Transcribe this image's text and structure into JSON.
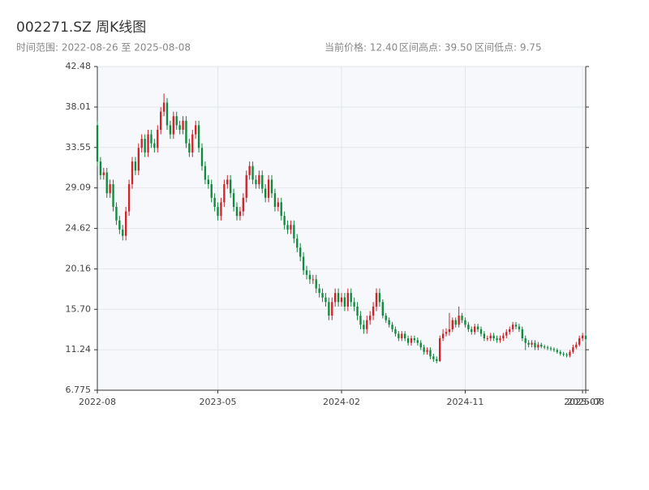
{
  "chart_data": {
    "type": "candlestick",
    "title": "002271.SZ 周K线图",
    "subtitle": "时间范围: 2022-08-26 至 2025-08-08",
    "stats": [
      "当前价格: 12.40",
      "区间高点: 39.50",
      "区间低点: 9.75"
    ],
    "up_color": "#d0232a",
    "down_color": "#108a3c",
    "grid": true,
    "xlim": [
      0,
      154
    ],
    "xticks": [
      {
        "value": 0,
        "label": "2022-08"
      },
      {
        "value": 38,
        "label": "2023-05"
      },
      {
        "value": 77,
        "label": "2024-02"
      },
      {
        "value": 116,
        "label": "2024-11"
      },
      {
        "value": 153,
        "label": "2025-07"
      },
      {
        "value": 154,
        "label": "2025-08"
      }
    ],
    "ylim": [
      6.775,
      42.48
    ],
    "yticks": [
      6.775,
      11.24,
      {
        "value": 15.7,
        "label": "15.70"
      },
      20.16,
      24.62,
      29.09,
      33.55,
      38.01,
      42.48
    ],
    "ohlc": [
      [
        36.0,
        36.5,
        31.5,
        32.0
      ],
      [
        32.0,
        32.5,
        30.0,
        30.5
      ],
      [
        30.5,
        31.3,
        30.0,
        30.8
      ],
      [
        30.8,
        31.3,
        28.0,
        28.5
      ],
      [
        28.5,
        30.0,
        28.0,
        29.5
      ],
      [
        29.5,
        30.0,
        26.5,
        27.0
      ],
      [
        27.0,
        27.5,
        25.0,
        25.5
      ],
      [
        25.5,
        26.0,
        24.0,
        24.5
      ],
      [
        24.5,
        25.0,
        23.3,
        23.8
      ],
      [
        23.8,
        27.0,
        23.3,
        26.5
      ],
      [
        26.5,
        30.0,
        26.0,
        29.5
      ],
      [
        29.5,
        32.5,
        29.0,
        32.0
      ],
      [
        32.0,
        32.5,
        30.5,
        31.0
      ],
      [
        31.0,
        34.0,
        30.5,
        33.5
      ],
      [
        33.5,
        35.0,
        33.0,
        34.5
      ],
      [
        34.5,
        35.0,
        32.5,
        33.0
      ],
      [
        33.0,
        35.5,
        32.5,
        35.0
      ],
      [
        35.0,
        35.5,
        33.5,
        34.0
      ],
      [
        34.0,
        34.5,
        33.0,
        33.5
      ],
      [
        33.5,
        36.0,
        33.0,
        35.5
      ],
      [
        35.5,
        38.0,
        35.0,
        37.5
      ],
      [
        37.5,
        39.5,
        37.0,
        38.5
      ],
      [
        38.5,
        39.0,
        35.5,
        36.0
      ],
      [
        36.0,
        36.5,
        34.5,
        35.0
      ],
      [
        35.0,
        37.5,
        34.5,
        37.0
      ],
      [
        37.0,
        37.5,
        35.5,
        36.0
      ],
      [
        36.0,
        36.5,
        35.0,
        35.5
      ],
      [
        35.5,
        37.0,
        35.0,
        36.5
      ],
      [
        36.5,
        37.0,
        33.5,
        34.0
      ],
      [
        34.0,
        34.5,
        32.5,
        33.0
      ],
      [
        33.0,
        35.5,
        32.5,
        35.0
      ],
      [
        35.0,
        36.5,
        34.5,
        36.0
      ],
      [
        36.0,
        36.5,
        33.0,
        33.5
      ],
      [
        33.5,
        34.0,
        31.0,
        31.5
      ],
      [
        31.5,
        32.0,
        29.5,
        30.0
      ],
      [
        30.0,
        30.5,
        29.0,
        29.5
      ],
      [
        29.5,
        30.0,
        27.5,
        28.0
      ],
      [
        28.0,
        28.5,
        26.5,
        27.0
      ],
      [
        27.0,
        27.5,
        25.5,
        26.0
      ],
      [
        26.0,
        28.0,
        25.5,
        27.5
      ],
      [
        27.5,
        30.0,
        27.0,
        29.5
      ],
      [
        29.5,
        30.5,
        29.0,
        30.0
      ],
      [
        30.0,
        30.5,
        28.0,
        28.5
      ],
      [
        28.5,
        29.0,
        26.5,
        27.0
      ],
      [
        27.0,
        27.5,
        25.5,
        26.0
      ],
      [
        26.0,
        27.0,
        25.5,
        26.5
      ],
      [
        26.5,
        28.5,
        26.0,
        28.0
      ],
      [
        28.0,
        31.0,
        27.5,
        30.5
      ],
      [
        30.5,
        32.0,
        30.0,
        31.5
      ],
      [
        31.5,
        32.0,
        29.5,
        30.0
      ],
      [
        30.0,
        30.5,
        29.0,
        29.5
      ],
      [
        29.5,
        31.0,
        29.0,
        30.5
      ],
      [
        30.5,
        31.0,
        28.5,
        29.0
      ],
      [
        29.0,
        29.5,
        27.5,
        28.0
      ],
      [
        28.0,
        30.5,
        27.5,
        30.0
      ],
      [
        30.0,
        30.5,
        28.0,
        28.5
      ],
      [
        28.5,
        29.0,
        26.5,
        27.0
      ],
      [
        27.0,
        28.0,
        26.5,
        27.5
      ],
      [
        27.5,
        28.0,
        25.5,
        26.0
      ],
      [
        26.0,
        26.5,
        24.5,
        25.0
      ],
      [
        25.0,
        25.5,
        24.0,
        24.5
      ],
      [
        24.5,
        25.5,
        24.0,
        25.0
      ],
      [
        25.0,
        25.5,
        23.0,
        23.5
      ],
      [
        23.5,
        24.0,
        22.0,
        22.5
      ],
      [
        22.5,
        23.0,
        21.0,
        21.5
      ],
      [
        21.5,
        22.0,
        19.5,
        20.0
      ],
      [
        20.0,
        20.5,
        19.0,
        19.5
      ],
      [
        19.5,
        20.0,
        18.5,
        19.0
      ],
      [
        19.0,
        19.5,
        18.5,
        19.0
      ],
      [
        19.0,
        19.5,
        17.5,
        18.0
      ],
      [
        18.0,
        18.5,
        17.0,
        17.5
      ],
      [
        17.5,
        18.0,
        16.5,
        17.0
      ],
      [
        17.0,
        17.5,
        16.0,
        16.5
      ],
      [
        16.5,
        17.0,
        14.5,
        15.0
      ],
      [
        15.0,
        17.0,
        14.5,
        16.5
      ],
      [
        16.5,
        18.0,
        16.0,
        17.5
      ],
      [
        17.5,
        18.0,
        16.0,
        16.5
      ],
      [
        16.5,
        17.5,
        16.0,
        17.0
      ],
      [
        17.0,
        17.5,
        15.5,
        16.0
      ],
      [
        16.0,
        18.0,
        15.5,
        17.5
      ],
      [
        17.5,
        18.0,
        16.0,
        16.5
      ],
      [
        16.5,
        17.0,
        15.5,
        16.0
      ],
      [
        16.0,
        16.5,
        14.5,
        15.0
      ],
      [
        15.0,
        15.5,
        13.5,
        14.0
      ],
      [
        14.0,
        14.5,
        13.0,
        13.5
      ],
      [
        13.5,
        15.0,
        13.0,
        14.5
      ],
      [
        14.5,
        15.5,
        14.0,
        15.0
      ],
      [
        15.0,
        16.5,
        14.5,
        16.0
      ],
      [
        16.0,
        18.0,
        15.5,
        17.5
      ],
      [
        17.5,
        18.0,
        16.0,
        16.5
      ],
      [
        16.5,
        16.8,
        14.7,
        15.0
      ],
      [
        15.0,
        15.3,
        14.2,
        14.5
      ],
      [
        14.5,
        14.8,
        13.7,
        14.0
      ],
      [
        14.0,
        14.3,
        13.2,
        13.5
      ],
      [
        13.5,
        13.8,
        12.7,
        13.0
      ],
      [
        13.0,
        13.3,
        12.2,
        12.5
      ],
      [
        12.5,
        13.3,
        12.2,
        13.0
      ],
      [
        13.0,
        13.3,
        12.2,
        12.5
      ],
      [
        12.5,
        12.8,
        11.7,
        12.0
      ],
      [
        12.0,
        12.8,
        11.7,
        12.5
      ],
      [
        12.5,
        12.8,
        12.0,
        12.3
      ],
      [
        12.3,
        12.6,
        11.7,
        12.0
      ],
      [
        12.0,
        12.3,
        11.2,
        11.5
      ],
      [
        11.5,
        11.8,
        10.7,
        11.0
      ],
      [
        11.0,
        11.5,
        10.7,
        11.2
      ],
      [
        11.2,
        11.5,
        10.2,
        10.5
      ],
      [
        10.5,
        10.8,
        9.9,
        10.2
      ],
      [
        10.2,
        10.5,
        9.75,
        10.0
      ],
      [
        10.0,
        12.8,
        9.9,
        12.5
      ],
      [
        12.5,
        13.5,
        12.2,
        13.0
      ],
      [
        13.0,
        13.6,
        12.7,
        13.2
      ],
      [
        13.2,
        15.3,
        12.8,
        13.5
      ],
      [
        13.5,
        14.8,
        13.2,
        14.5
      ],
      [
        14.5,
        14.8,
        13.7,
        14.0
      ],
      [
        14.0,
        16.0,
        13.7,
        15.0
      ],
      [
        15.0,
        15.3,
        14.2,
        14.5
      ],
      [
        14.5,
        14.8,
        13.7,
        14.0
      ],
      [
        14.0,
        14.3,
        13.2,
        13.5
      ],
      [
        13.5,
        13.8,
        12.9,
        13.2
      ],
      [
        13.2,
        14.1,
        12.9,
        13.8
      ],
      [
        13.8,
        14.1,
        13.2,
        13.5
      ],
      [
        13.5,
        13.8,
        12.7,
        13.0
      ],
      [
        13.0,
        13.3,
        12.2,
        12.5
      ],
      [
        12.5,
        12.8,
        12.2,
        12.5
      ],
      [
        12.5,
        13.1,
        12.2,
        12.8
      ],
      [
        12.8,
        13.1,
        12.2,
        12.5
      ],
      [
        12.5,
        12.8,
        12.0,
        12.3
      ],
      [
        12.3,
        12.8,
        12.0,
        12.5
      ],
      [
        12.5,
        13.1,
        12.2,
        12.8
      ],
      [
        12.8,
        13.5,
        12.5,
        13.2
      ],
      [
        13.2,
        13.8,
        12.9,
        13.5
      ],
      [
        13.5,
        14.3,
        13.2,
        14.0
      ],
      [
        14.0,
        14.3,
        13.5,
        13.8
      ],
      [
        13.8,
        14.1,
        13.2,
        13.5
      ],
      [
        13.5,
        13.8,
        12.2,
        12.5
      ],
      [
        12.5,
        12.8,
        11.2,
        12.0
      ],
      [
        12.0,
        12.3,
        11.5,
        11.8
      ],
      [
        11.8,
        12.3,
        11.5,
        12.0
      ],
      [
        12.0,
        12.3,
        11.2,
        11.5
      ],
      [
        11.5,
        12.1,
        11.2,
        11.8
      ],
      [
        11.8,
        12.0,
        11.4,
        11.6
      ],
      [
        11.6,
        11.8,
        11.3,
        11.5
      ],
      [
        11.5,
        11.7,
        11.2,
        11.4
      ],
      [
        11.4,
        11.6,
        11.1,
        11.3
      ],
      [
        11.3,
        11.5,
        11.0,
        11.2
      ],
      [
        11.2,
        11.4,
        10.8,
        11.0
      ],
      [
        11.0,
        11.2,
        10.6,
        10.8
      ],
      [
        10.8,
        11.0,
        10.5,
        10.7
      ],
      [
        10.7,
        10.9,
        10.4,
        10.6
      ],
      [
        10.6,
        11.2,
        10.4,
        11.0
      ],
      [
        11.0,
        11.8,
        10.8,
        11.5
      ],
      [
        11.5,
        12.1,
        11.3,
        11.8
      ],
      [
        11.8,
        12.8,
        11.6,
        12.5
      ],
      [
        12.5,
        13.1,
        12.2,
        12.8
      ],
      [
        12.8,
        13.0,
        12.1,
        12.4
      ]
    ]
  }
}
